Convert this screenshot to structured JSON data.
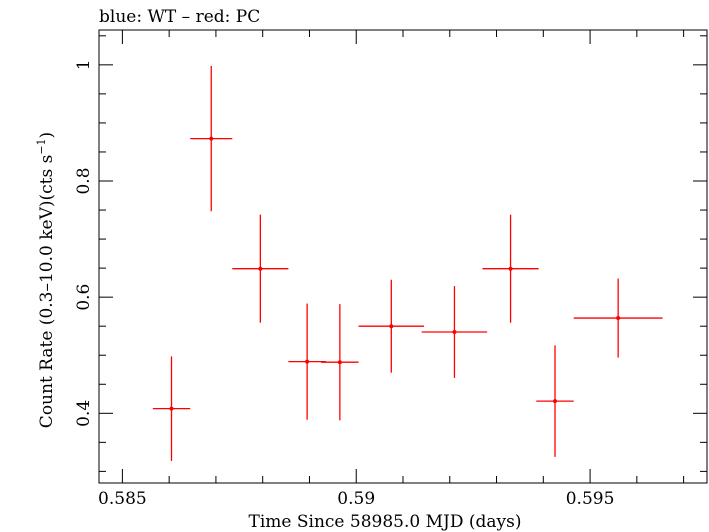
{
  "header": {
    "title": "blue: WT – red: PC"
  },
  "chart_data": {
    "type": "scatter",
    "title": "blue: WT – red: PC",
    "xlabel": "Time Since 58985.0 MJD (days)",
    "ylabel_main": "Count Rate (0.3–10.0 keV)(cts s",
    "ylabel_sup": "−1",
    "ylabel_close": ")",
    "xlim": [
      0.5845,
      0.5975
    ],
    "ylim": [
      0.28,
      1.06
    ],
    "xticks": [
      0.585,
      0.59,
      0.595
    ],
    "xtick_labels": [
      "0.585",
      "0.59",
      "0.595"
    ],
    "yticks": [
      0.4,
      0.6,
      0.8,
      1.0
    ],
    "ytick_labels": [
      "0.4",
      "0.6",
      "0.8",
      "1"
    ],
    "series": [
      {
        "name": "PC",
        "color": "#ff0000",
        "points": [
          {
            "x": 0.58605,
            "y": 0.408,
            "xerr": 0.0004,
            "yerr": 0.09
          },
          {
            "x": 0.5869,
            "y": 0.873,
            "xerr": 0.00045,
            "yerr": 0.125
          },
          {
            "x": 0.58795,
            "y": 0.649,
            "xerr": 0.0006,
            "yerr": 0.093
          },
          {
            "x": 0.58895,
            "y": 0.489,
            "xerr": 0.0004,
            "yerr": 0.1
          },
          {
            "x": 0.58965,
            "y": 0.488,
            "xerr": 0.0004,
            "yerr": 0.1
          },
          {
            "x": 0.59075,
            "y": 0.55,
            "xerr": 0.0007,
            "yerr": 0.08
          },
          {
            "x": 0.5921,
            "y": 0.54,
            "xerr": 0.0007,
            "yerr": 0.079
          },
          {
            "x": 0.5933,
            "y": 0.649,
            "xerr": 0.0006,
            "yerr": 0.093
          },
          {
            "x": 0.59425,
            "y": 0.421,
            "xerr": 0.0004,
            "yerr": 0.096
          },
          {
            "x": 0.5956,
            "y": 0.564,
            "xerr": 0.00095,
            "yerr": 0.068
          }
        ]
      }
    ]
  }
}
